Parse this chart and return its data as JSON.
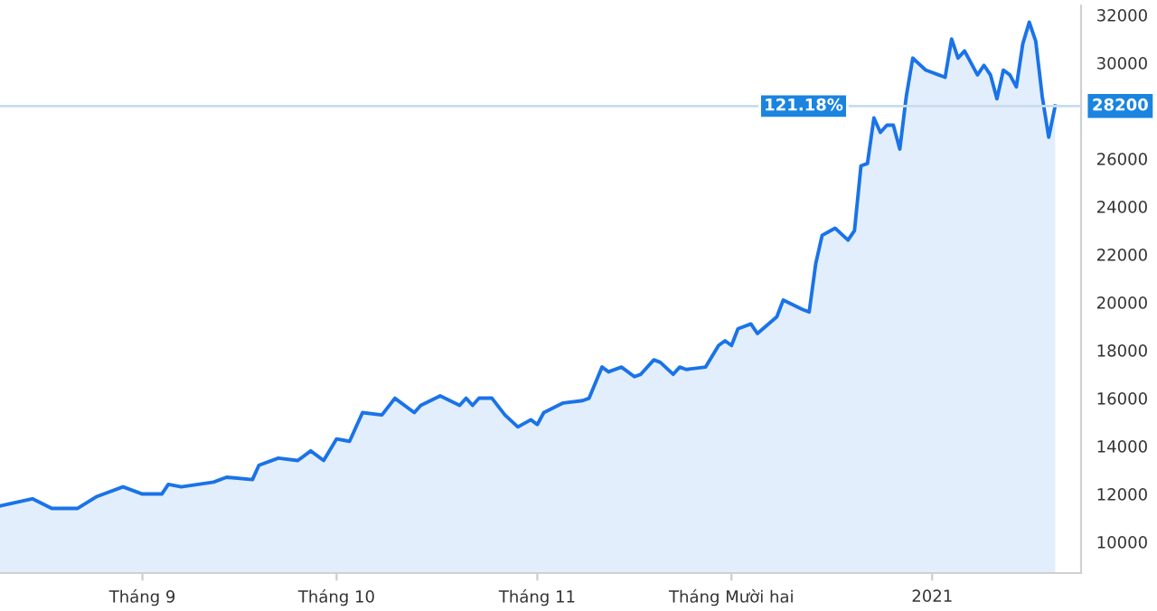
{
  "chart_data": {
    "type": "area",
    "x": [
      "2020-08-10",
      "2020-08-15",
      "2020-08-18",
      "2020-08-22",
      "2020-08-25",
      "2020-08-29",
      "2020-09-01",
      "2020-09-04",
      "2020-09-05",
      "2020-09-07",
      "2020-09-12",
      "2020-09-14",
      "2020-09-18",
      "2020-09-19",
      "2020-09-22",
      "2020-09-25",
      "2020-09-27",
      "2020-09-29",
      "2020-10-01",
      "2020-10-03",
      "2020-10-05",
      "2020-10-08",
      "2020-10-10",
      "2020-10-13",
      "2020-10-14",
      "2020-10-17",
      "2020-10-20",
      "2020-10-21",
      "2020-10-22",
      "2020-10-23",
      "2020-10-25",
      "2020-10-27",
      "2020-10-29",
      "2020-10-31",
      "2020-11-01",
      "2020-11-02",
      "2020-11-05",
      "2020-11-08",
      "2020-11-09",
      "2020-11-11",
      "2020-11-12",
      "2020-11-14",
      "2020-11-16",
      "2020-11-17",
      "2020-11-19",
      "2020-11-20",
      "2020-11-22",
      "2020-11-23",
      "2020-11-24",
      "2020-11-27",
      "2020-11-29",
      "2020-11-30",
      "2020-12-01",
      "2020-12-02",
      "2020-12-04",
      "2020-12-05",
      "2020-12-08",
      "2020-12-09",
      "2020-12-12",
      "2020-12-13",
      "2020-12-14",
      "2020-12-15",
      "2020-12-17",
      "2020-12-19",
      "2020-12-20",
      "2020-12-21",
      "2020-12-22",
      "2020-12-23",
      "2020-12-24",
      "2020-12-25",
      "2020-12-26",
      "2020-12-27",
      "2020-12-28",
      "2020-12-29",
      "2020-12-31",
      "2021-01-02",
      "2021-01-03",
      "2021-01-04",
      "2021-01-05",
      "2021-01-06",
      "2021-01-08",
      "2021-01-09",
      "2021-01-10",
      "2021-01-11",
      "2021-01-12",
      "2021-01-13",
      "2021-01-14",
      "2021-01-15",
      "2021-01-16",
      "2021-01-17",
      "2021-01-18",
      "2021-01-19",
      "2021-01-20"
    ],
    "series": [
      {
        "color": "#1a73e8",
        "values": [
          11500,
          11800,
          11400,
          11400,
          11900,
          12300,
          12000,
          12000,
          12400,
          12300,
          12500,
          12700,
          12600,
          13200,
          13500,
          13400,
          13800,
          13400,
          14300,
          14200,
          15400,
          15300,
          16000,
          15400,
          15700,
          16100,
          15700,
          16000,
          15700,
          16000,
          16000,
          15300,
          14800,
          15100,
          14900,
          15400,
          15800,
          15900,
          16000,
          17300,
          17100,
          17300,
          16900,
          17000,
          17600,
          17500,
          17000,
          17300,
          17200,
          17300,
          18200,
          18400,
          18200,
          18900,
          19100,
          18700,
          19400,
          20100,
          19700,
          19600,
          21600,
          22800,
          23100,
          22600,
          23000,
          25700,
          25800,
          27700,
          27100,
          27400,
          27400,
          26400,
          28600,
          30200,
          29700,
          29500,
          29400,
          31000,
          30200,
          30500,
          29500,
          29900,
          29500,
          28500,
          29700,
          29500,
          29000,
          30800,
          31700,
          30900,
          28600,
          26900,
          28200
        ]
      }
    ],
    "xlim": [
      "2020-08-10",
      "2021-01-24"
    ],
    "xticks": [
      {
        "value": "2020-09-01",
        "label": "Tháng 9"
      },
      {
        "value": "2020-10-01",
        "label": "Tháng 10"
      },
      {
        "value": "2020-11-01",
        "label": "Tháng 11"
      },
      {
        "value": "2020-12-01",
        "label": "Tháng Mười hai"
      },
      {
        "value": "2021-01-01",
        "label": "2021"
      }
    ],
    "ylim": [
      8700,
      32400
    ],
    "yticks": [
      10000,
      12000,
      14000,
      16000,
      18000,
      20000,
      22000,
      24000,
      26000,
      30000,
      32000
    ],
    "ref_lines": [
      {
        "axis": "y",
        "value": 28200,
        "label": "28200",
        "color": "#c8dcee"
      }
    ],
    "annotations": [
      "121.18%"
    ],
    "grid": false
  }
}
